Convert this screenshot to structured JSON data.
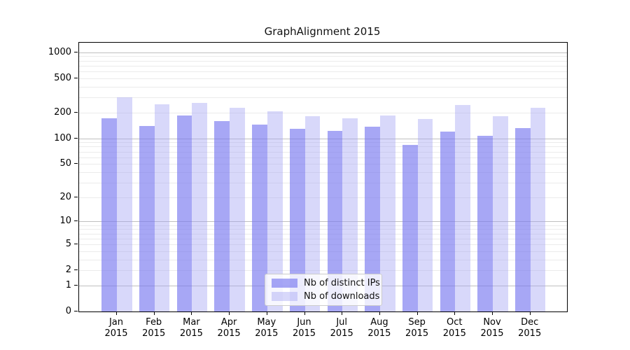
{
  "title": "GraphAlignment 2015",
  "legend": {
    "items": [
      {
        "label": "Nb of distinct IPs",
        "color_hex": "#a8a8f5",
        "color_rgba": "rgba(120,120,240,0.65)"
      },
      {
        "label": "Nb of downloads",
        "color_hex": "#d8d8fa",
        "color_rgba": "rgba(163,163,242,0.42)"
      }
    ]
  },
  "axes": {
    "y_tick_labels": [
      "1000",
      "500",
      "200",
      "100",
      "50",
      "20",
      "10",
      "5",
      "2",
      "1",
      "0"
    ],
    "x_tick_year": "2015"
  },
  "chart_data": {
    "type": "bar",
    "title": "GraphAlignment 2015",
    "y_scale": "log10(1+v)",
    "ylim": [
      0,
      1000
    ],
    "y_ticks": [
      1000,
      500,
      200,
      100,
      50,
      20,
      10,
      5,
      2,
      1,
      0
    ],
    "grid": true,
    "legend_position": "bottom-center-inside",
    "categories": [
      "Jan 2015",
      "Feb 2015",
      "Mar 2015",
      "Apr 2015",
      "May 2015",
      "Jun 2015",
      "Jul 2015",
      "Aug 2015",
      "Sep 2015",
      "Oct 2015",
      "Nov 2015",
      "Dec 2015"
    ],
    "month_labels": [
      "Jan",
      "Feb",
      "Mar",
      "Apr",
      "May",
      "Jun",
      "Jul",
      "Aug",
      "Sep",
      "Oct",
      "Nov",
      "Dec"
    ],
    "series": [
      {
        "name": "Nb of distinct IPs",
        "color": "rgba(120,120,240,0.65)",
        "values": [
          170,
          140,
          184,
          160,
          144,
          129,
          122,
          136,
          84,
          120,
          108,
          132
        ]
      },
      {
        "name": "Nb of downloads",
        "color": "rgba(163,163,242,0.42)",
        "values": [
          299,
          248,
          261,
          225,
          206,
          181,
          171,
          184,
          167,
          243,
          182,
          228
        ]
      }
    ],
    "colors": {
      "grid_major": "#c0c0c0",
      "grid_minor": "#ebebeb",
      "axis": "#000000"
    }
  }
}
